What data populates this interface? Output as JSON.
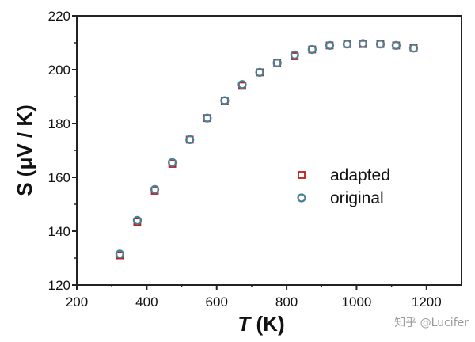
{
  "chart_data": {
    "type": "scatter",
    "xlabel_italic": "T",
    "xlabel_rest": " (K)",
    "ylabel": "S (μV / K)",
    "xlim": [
      200,
      1300
    ],
    "ylim": [
      120,
      220
    ],
    "xticks": [
      200,
      400,
      600,
      800,
      1000,
      1200
    ],
    "yticks": [
      120,
      140,
      160,
      180,
      200,
      220
    ],
    "series": [
      {
        "name": "adapted",
        "marker": "square",
        "color": "#c0191c",
        "x": [
          323,
          373,
          423,
          473,
          523,
          573,
          623,
          673,
          723,
          773,
          823,
          873,
          923,
          973,
          1018,
          1068,
          1113,
          1163
        ],
        "y": [
          131.0,
          143.5,
          155.0,
          165.0,
          174.0,
          182.0,
          188.5,
          194.0,
          199.0,
          202.5,
          205.0,
          207.5,
          209.0,
          209.5,
          209.5,
          209.5,
          209.0,
          208.0
        ]
      },
      {
        "name": "original",
        "marker": "circle",
        "color": "#4a7f98",
        "x": [
          323,
          373,
          423,
          473,
          523,
          573,
          623,
          673,
          723,
          773,
          823,
          873,
          923,
          973,
          1018,
          1068,
          1113,
          1163
        ],
        "y": [
          131.5,
          144.0,
          155.5,
          165.5,
          174.0,
          182.0,
          188.5,
          194.5,
          199.0,
          202.5,
          205.5,
          207.5,
          209.0,
          209.5,
          209.7,
          209.5,
          209.0,
          208.0
        ]
      }
    ],
    "legend_position": "center-right"
  },
  "watermark": "知乎 @Lucifer"
}
